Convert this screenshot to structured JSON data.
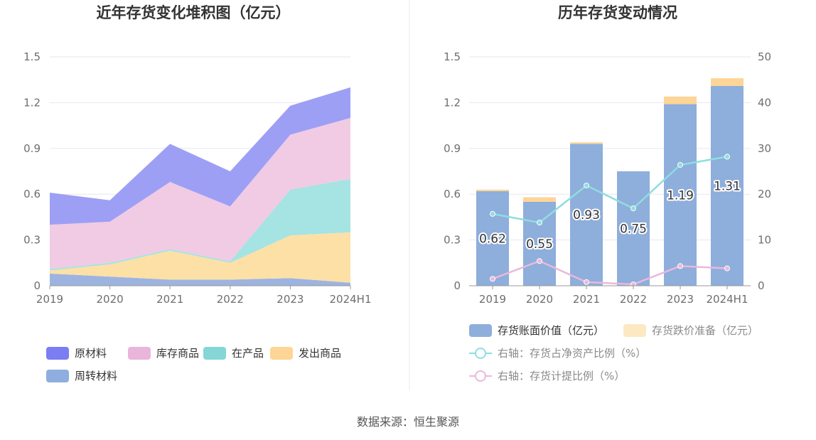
{
  "source": "数据来源：恒生聚源",
  "chart_data": [
    {
      "type": "area",
      "stacked": true,
      "title": "近年存货变化堆积图（亿元）",
      "categories": [
        "2019",
        "2020",
        "2021",
        "2022",
        "2023",
        "2024H1"
      ],
      "ylim": [
        0,
        1.5
      ],
      "yticks": [
        "0",
        "0.3",
        "0.6",
        "0.9",
        "1.2",
        "1.5"
      ],
      "grid": true,
      "legend_position": "bottom",
      "series": [
        {
          "name": "周转材料",
          "color": "#9db4e0",
          "values": [
            0.08,
            0.06,
            0.04,
            0.04,
            0.05,
            0.02
          ]
        },
        {
          "name": "发出商品",
          "color": "#fde0a6",
          "values": [
            0.02,
            0.08,
            0.19,
            0.11,
            0.28,
            0.33
          ]
        },
        {
          "name": "在产品",
          "color": "#a6e3e3",
          "values": [
            0.01,
            0.01,
            0.01,
            0.01,
            0.3,
            0.35
          ]
        },
        {
          "name": "库存商品",
          "color": "#f0cbe3",
          "values": [
            0.29,
            0.27,
            0.44,
            0.36,
            0.36,
            0.4
          ]
        },
        {
          "name": "原材料",
          "color": "#9d9ff5",
          "values": [
            0.21,
            0.14,
            0.25,
            0.23,
            0.19,
            0.2
          ]
        }
      ],
      "legend": [
        {
          "name": "原材料",
          "color": "#7b7df2"
        },
        {
          "name": "库存商品",
          "color": "#e9b5da"
        },
        {
          "name": "在产品",
          "color": "#85d6d7"
        },
        {
          "name": "发出商品",
          "color": "#fdd596"
        },
        {
          "name": "周转材料",
          "color": "#8eaedf"
        }
      ]
    },
    {
      "type": "bar",
      "stacked": true,
      "title": "历年存货变动情况",
      "categories": [
        "2019",
        "2020",
        "2021",
        "2022",
        "2023",
        "2024H1"
      ],
      "ylim": [
        0,
        1.5
      ],
      "yticks": [
        "0",
        "0.3",
        "0.6",
        "0.9",
        "1.2",
        "1.5"
      ],
      "y2lim": [
        0,
        50
      ],
      "y2ticks": [
        "0",
        "10",
        "20",
        "30",
        "40",
        "50"
      ],
      "grid": true,
      "legend_position": "bottom",
      "series": [
        {
          "name": "存货账面价值（亿元）",
          "kind": "bar",
          "color": "#8eaedb",
          "values": [
            0.62,
            0.55,
            0.93,
            0.75,
            1.19,
            1.31
          ],
          "labels": [
            "0.62",
            "0.55",
            "0.93",
            "0.75",
            "1.19",
            "1.31"
          ]
        },
        {
          "name": "存货跌价准备（亿元）",
          "kind": "bar",
          "color": "#fdd596",
          "legend_color": "#fde8c4",
          "values": [
            0.01,
            0.03,
            0.01,
            0.0,
            0.05,
            0.05
          ]
        },
        {
          "name": "右轴：存货占净资产比例（%）",
          "kind": "line",
          "axis": "right",
          "color": "#8fdde0",
          "values": [
            15.7,
            13.8,
            21.9,
            16.9,
            26.4,
            28.2
          ]
        },
        {
          "name": "右轴：存货计提比例（%）",
          "kind": "line",
          "axis": "right",
          "color": "#eab8dc",
          "values": [
            1.5,
            5.4,
            0.8,
            0.3,
            4.3,
            3.8
          ]
        }
      ]
    }
  ]
}
